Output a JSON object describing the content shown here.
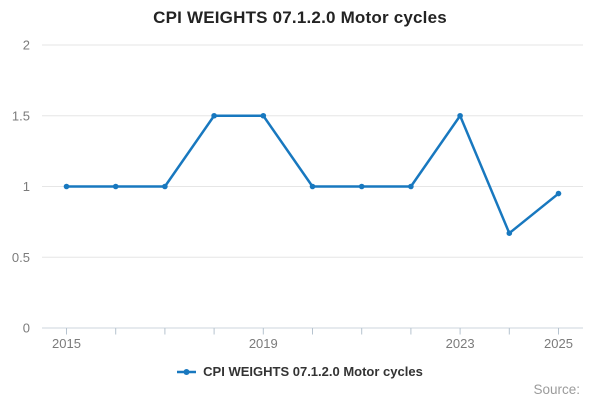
{
  "chart_data": {
    "type": "line",
    "title": "CPI WEIGHTS 07.1.2.0 Motor cycles",
    "x": [
      2015,
      2016,
      2017,
      2018,
      2019,
      2020,
      2021,
      2022,
      2023,
      2024,
      2025
    ],
    "series": [
      {
        "name": "CPI WEIGHTS 07.1.2.0 Motor cycles",
        "values": [
          1,
          1,
          1,
          1.5,
          1.5,
          1,
          1,
          1,
          1.5,
          0.67,
          0.95
        ],
        "color": "#1878bf",
        "marker": "dot"
      }
    ],
    "xlabel": "",
    "ylabel": "",
    "ylim": [
      0,
      2
    ],
    "yticks": [
      0,
      0.5,
      1,
      1.5,
      2
    ],
    "ytick_labels": [
      "0",
      "0.5",
      "1",
      "1.5",
      "2"
    ],
    "xticks_every_year": true,
    "xticks_labeled": [
      2015,
      2019,
      2023,
      2025
    ],
    "grid": true,
    "legend_position": "bottom-center"
  },
  "footer": {
    "source_label": "Source:"
  },
  "colors": {
    "accent_blue": "#1878bf",
    "gridline": "#e6e6e6",
    "axis_line": "#ccd6dd",
    "tick_mark": "#b6c3cf",
    "axis_label_text": "#7b7b7b",
    "title_text": "#232323",
    "legend_text": "#333333",
    "source_text": "#9b9b9b"
  }
}
